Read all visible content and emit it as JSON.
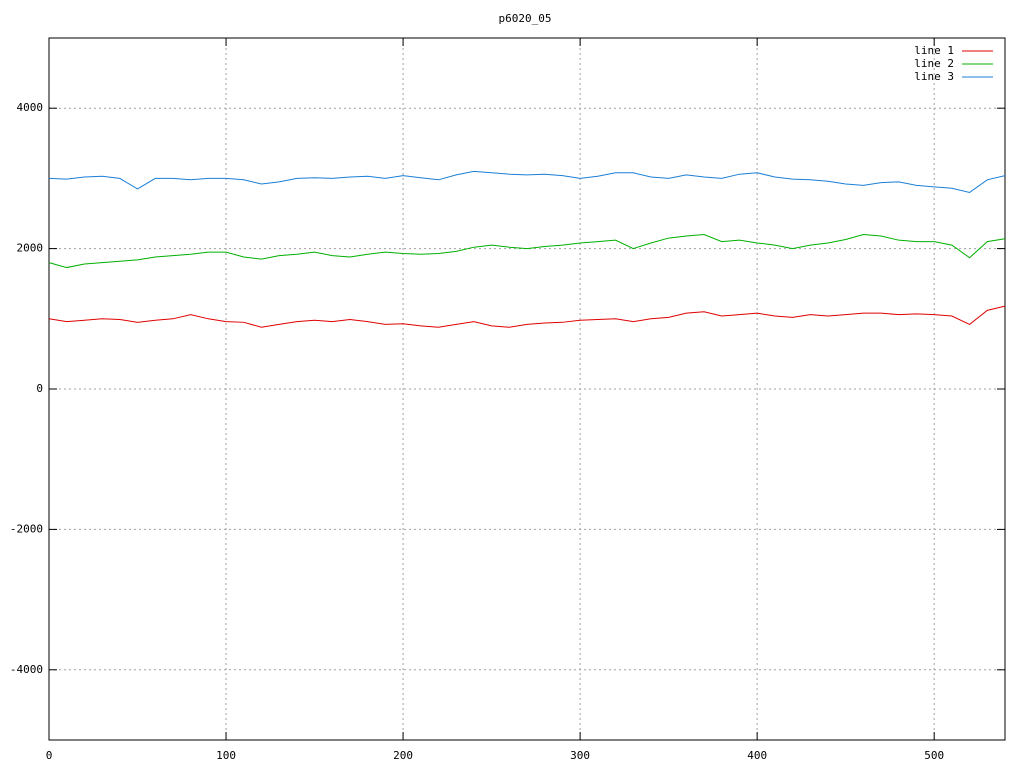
{
  "chart_data": {
    "type": "line",
    "title": "p6020_05",
    "x": [
      0,
      10,
      20,
      30,
      40,
      50,
      60,
      70,
      80,
      90,
      100,
      110,
      120,
      130,
      140,
      150,
      160,
      170,
      180,
      190,
      200,
      210,
      220,
      230,
      240,
      250,
      260,
      270,
      280,
      290,
      300,
      310,
      320,
      330,
      340,
      350,
      360,
      370,
      380,
      390,
      400,
      410,
      420,
      430,
      440,
      450,
      460,
      470,
      480,
      490,
      500,
      510,
      520,
      530,
      540
    ],
    "series": [
      {
        "name": "line 1",
        "color": "#e00000",
        "values": [
          1000,
          960,
          980,
          1000,
          990,
          950,
          980,
          1000,
          1060,
          1000,
          960,
          950,
          880,
          920,
          960,
          980,
          960,
          990,
          960,
          920,
          930,
          900,
          880,
          920,
          960,
          900,
          880,
          920,
          940,
          950,
          980,
          990,
          1000,
          960,
          1000,
          1020,
          1080,
          1100,
          1040,
          1060,
          1080,
          1040,
          1020,
          1060,
          1040,
          1060,
          1080,
          1080,
          1060,
          1070,
          1060,
          1040,
          920,
          1120,
          1180
        ]
      },
      {
        "name": "line 2",
        "color": "#00b000",
        "values": [
          1800,
          1730,
          1780,
          1800,
          1820,
          1840,
          1880,
          1900,
          1920,
          1950,
          1950,
          1880,
          1850,
          1900,
          1920,
          1950,
          1900,
          1880,
          1920,
          1950,
          1930,
          1920,
          1930,
          1960,
          2020,
          2050,
          2020,
          2000,
          2030,
          2050,
          2080,
          2100,
          2120,
          2000,
          2080,
          2150,
          2180,
          2200,
          2100,
          2120,
          2080,
          2050,
          2000,
          2050,
          2080,
          2130,
          2200,
          2180,
          2120,
          2100,
          2100,
          2050,
          1870,
          2100,
          2140
        ]
      },
      {
        "name": "line 3",
        "color": "#1a7fd6",
        "values": [
          3000,
          2990,
          3020,
          3030,
          3000,
          2850,
          3000,
          3000,
          2980,
          3000,
          3000,
          2980,
          2920,
          2950,
          3000,
          3010,
          3000,
          3020,
          3030,
          3000,
          3040,
          3010,
          2980,
          3050,
          3100,
          3080,
          3060,
          3050,
          3060,
          3040,
          3000,
          3030,
          3080,
          3080,
          3020,
          3000,
          3050,
          3020,
          3000,
          3060,
          3080,
          3020,
          2990,
          2980,
          2960,
          2920,
          2900,
          2940,
          2950,
          2900,
          2880,
          2860,
          2800,
          2980,
          3040
        ]
      }
    ],
    "xlim": [
      0,
      540
    ],
    "xticks": [
      0,
      100,
      200,
      300,
      400,
      500
    ],
    "ylim": [
      -5000,
      5000
    ],
    "yticks": [
      -4000,
      -2000,
      0,
      2000,
      4000
    ],
    "grid": true,
    "legend": "upper right"
  }
}
